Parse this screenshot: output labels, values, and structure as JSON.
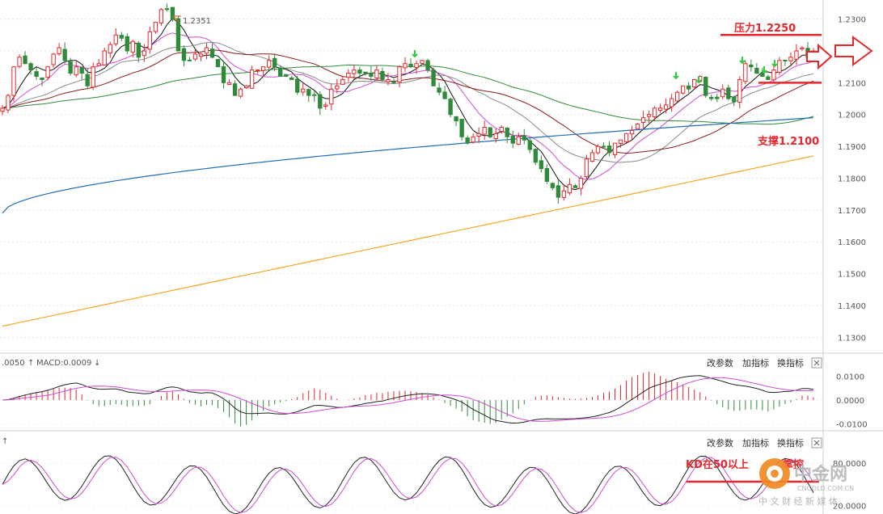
{
  "colors": {
    "bull": "#e8262b",
    "bear": "#2e8b3a",
    "ma5": "#111111",
    "ma10": "#d24bd2",
    "ma20": "#8a8a8a",
    "ma30": "#8b1a1a",
    "ma60": "#2e8b3a",
    "ma120": "#1e6fb8",
    "ma250": "#f5a623",
    "resistance": "#e8262b",
    "annotation": "#e8262b"
  },
  "panels": {
    "macd": {
      "header_prefix": ".0050",
      "header_macd": "MACD:0.0009",
      "buttons": [
        "改参数",
        "加指标",
        "换指标"
      ],
      "close_icon": "close-icon"
    },
    "kd": {
      "buttons": [
        "改参数",
        "加指标",
        "换指标"
      ],
      "close_icon": "close-icon",
      "annotation": "KD在50以上",
      "annotation_tail": "掌控"
    }
  },
  "annotations": {
    "high_label": "1.2351",
    "resistance_label": "压力1.2250",
    "support_label": "支撑1.2100"
  },
  "watermark": {
    "brand": "中金网",
    "url": "CNGOLD.COM.CN",
    "subtitle": "中 文 财 经 新 媒 体"
  },
  "chart_data": [
    {
      "type": "candlestick",
      "title": "",
      "xlabel": "",
      "ylabel": "",
      "ylim": [
        1.125,
        1.236
      ],
      "y_ticks": [
        1.23,
        1.22,
        1.21,
        1.2,
        1.19,
        1.18,
        1.17,
        1.16,
        1.15,
        1.14,
        1.13
      ],
      "y_tick_labels": [
        "1.2300",
        "1.2200",
        "1.2100",
        "1.2000",
        "1.1900",
        "1.1800",
        "1.1700",
        "1.1600",
        "1.1500",
        "1.1400",
        "1.1300"
      ],
      "grid": true,
      "close": [
        1.202,
        1.206,
        1.215,
        1.218,
        1.216,
        1.214,
        1.212,
        1.211,
        1.215,
        1.219,
        1.221,
        1.217,
        1.213,
        1.215,
        1.213,
        1.209,
        1.215,
        1.216,
        1.22,
        1.222,
        1.225,
        1.224,
        1.22,
        1.223,
        1.218,
        1.22,
        1.226,
        1.229,
        1.233,
        1.233,
        1.23,
        1.22,
        1.217,
        1.217,
        1.219,
        1.219,
        1.221,
        1.218,
        1.215,
        1.21,
        1.21,
        1.206,
        1.208,
        1.209,
        1.214,
        1.214,
        1.215,
        1.217,
        1.215,
        1.212,
        1.212,
        1.211,
        1.207,
        1.208,
        1.206,
        1.206,
        1.202,
        1.203,
        1.208,
        1.209,
        1.211,
        1.213,
        1.214,
        1.213,
        1.213,
        1.212,
        1.214,
        1.211,
        1.211,
        1.21,
        1.215,
        1.216,
        1.215,
        1.216,
        1.217,
        1.214,
        1.209,
        1.207,
        1.205,
        1.2,
        1.198,
        1.193,
        1.191,
        1.193,
        1.194,
        1.196,
        1.193,
        1.194,
        1.196,
        1.193,
        1.191,
        1.193,
        1.192,
        1.189,
        1.185,
        1.183,
        1.179,
        1.177,
        1.174,
        1.176,
        1.178,
        1.177,
        1.18,
        1.186,
        1.188,
        1.19,
        1.19,
        1.188,
        1.191,
        1.192,
        1.194,
        1.195,
        1.197,
        1.199,
        1.2,
        1.202,
        1.202,
        1.203,
        1.205,
        1.207,
        1.209,
        1.208,
        1.211,
        1.212,
        1.206,
        1.205,
        1.205,
        1.208,
        1.205,
        1.204,
        1.211,
        1.216,
        1.215,
        1.213,
        1.212,
        1.211,
        1.214,
        1.217,
        1.217,
        1.218,
        1.22,
        1.221,
        1.218,
        1.22
      ],
      "ma_lines": [
        {
          "name": "MA5",
          "color": "#111111"
        },
        {
          "name": "MA10",
          "color": "#d24bd2"
        },
        {
          "name": "MA20",
          "color": "#8a8a8a"
        },
        {
          "name": "MA30",
          "color": "#8b1a1a"
        },
        {
          "name": "MA60",
          "color": "#2e8b3a"
        },
        {
          "name": "MA120",
          "color": "#1e6fb8"
        },
        {
          "name": "MA250",
          "color": "#f5a623"
        }
      ],
      "resistance": 1.225,
      "support": 1.21,
      "recent_high": 1.2351
    },
    {
      "type": "macd",
      "ylim": [
        -0.0125,
        0.0125
      ],
      "y_ticks": [
        0.01,
        0.0,
        -0.01
      ],
      "y_tick_labels": [
        "0.0100",
        "0.0000",
        "-0.0100"
      ],
      "series": [
        {
          "name": "MACD",
          "values": [
            0.0009
          ]
        }
      ]
    },
    {
      "type": "line",
      "ylim": [
        15,
        95
      ],
      "y_ticks": [
        80,
        20
      ],
      "y_tick_labels": [
        "80.0000",
        "20.0000"
      ],
      "reference": 50
    }
  ]
}
